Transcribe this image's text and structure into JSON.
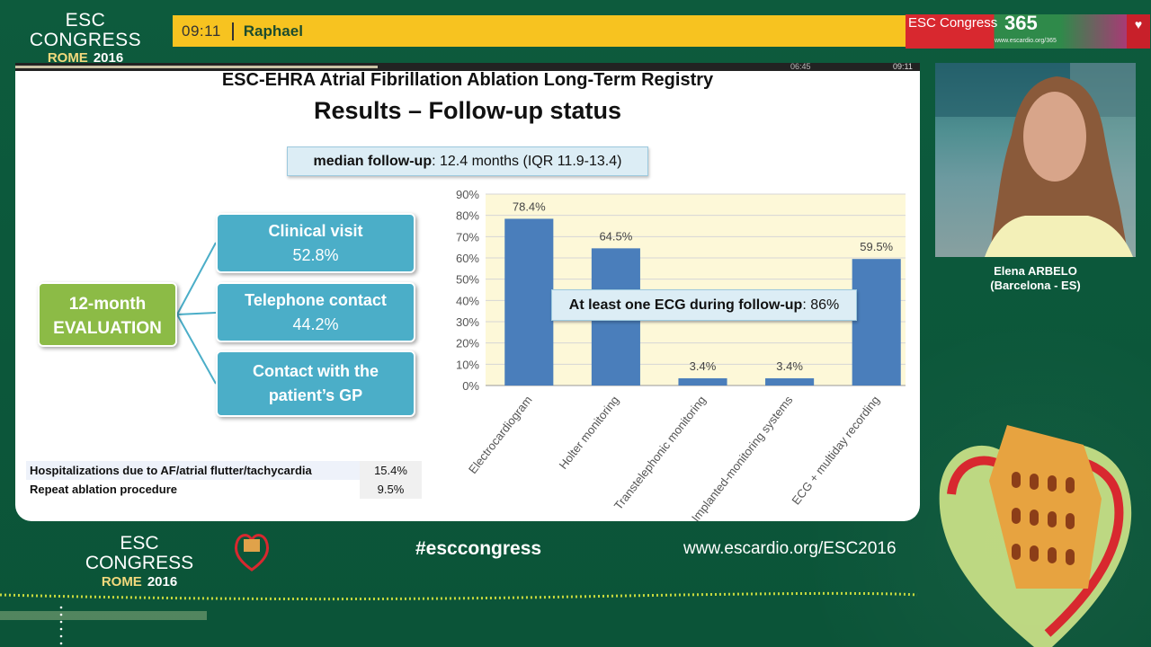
{
  "header": {
    "logo_line1": "ESC CONGRESS",
    "logo_city": "ROME",
    "logo_year": "2016",
    "clock": "09:11",
    "speaker_short": "Raphael",
    "brand_text": "ESC Congress",
    "brand_number": "365",
    "brand_url": "www.escardio.org/365"
  },
  "player": {
    "elapsed": "06:45",
    "total": "09:11",
    "progress_fraction": 0.47
  },
  "slide": {
    "title_line1": "ESC-EHRA Atrial Fibrillation Ablation Long-Term Registry",
    "title_line2": "Results – Follow-up status",
    "median_label": "median follow-up",
    "median_value": ": 12.4 months (IQR 11.9-13.4)",
    "evaluation_line1": "12-month",
    "evaluation_line2": "EVALUATION",
    "items": [
      {
        "label": "Clinical visit",
        "value": "52.8%"
      },
      {
        "label": "Telephone contact",
        "value": "44.2%"
      },
      {
        "label": "Contact with the",
        "value": "patient’s GP"
      }
    ],
    "summary_rows": [
      {
        "label": "Hospitalizations due to AF/atrial flutter/tachycardia",
        "value": "15.4%"
      },
      {
        "label": "Repeat ablation procedure",
        "value": "9.5%"
      }
    ],
    "ecg_note_label": "At least one ECG during follow-up",
    "ecg_note_value": ": 86%"
  },
  "chart_data": {
    "type": "bar",
    "categories": [
      "Electrocardiogram",
      "Holter monitoring",
      "Transtelephonic monitoring",
      "Implanted-monitoring systems",
      "ECG + multiday recording"
    ],
    "values": [
      78.4,
      64.5,
      3.4,
      3.4,
      59.5
    ],
    "data_labels": [
      "78.4%",
      "64.5%",
      "3.4%",
      "3.4%",
      "59.5%"
    ],
    "yticks": [
      "0%",
      "10%",
      "20%",
      "30%",
      "40%",
      "50%",
      "60%",
      "70%",
      "80%",
      "90%"
    ],
    "ylim": [
      0,
      90
    ],
    "title": "",
    "xlabel": "",
    "ylabel": "",
    "grid": true,
    "bar_color": "#4a7ebb",
    "plot_background": "#fdf8d8"
  },
  "speaker": {
    "name": "Elena ARBELO",
    "affiliation": "(Barcelona - ES)"
  },
  "footer": {
    "logo_line1": "ESC CONGRESS",
    "logo_city": "ROME",
    "logo_year": "2016",
    "hashtag": "#esccongress",
    "url": "www.escardio.org/ESC2016"
  }
}
